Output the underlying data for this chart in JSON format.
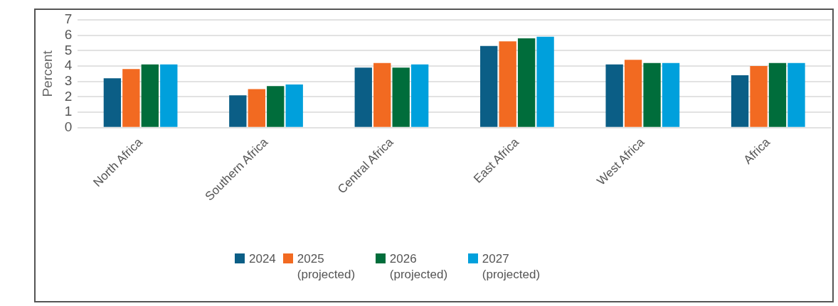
{
  "chart_data": {
    "type": "bar",
    "ylabel": "Percent",
    "categories": [
      "North Africa",
      "Southern Africa",
      "Central Africa",
      "East Africa",
      "West Africa",
      "Africa"
    ],
    "series": [
      {
        "name": "2024",
        "color": "#0b5e86",
        "values": [
          3.2,
          2.1,
          3.9,
          5.3,
          4.1,
          3.4
        ]
      },
      {
        "name": "2025 (projected)",
        "color": "#f26a21",
        "values": [
          3.8,
          2.5,
          4.2,
          5.6,
          4.4,
          4.0
        ]
      },
      {
        "name": "2026 (projected)",
        "color": "#006d3b",
        "values": [
          4.1,
          2.7,
          3.9,
          5.8,
          4.2,
          4.2
        ]
      },
      {
        "name": "2027 (projected)",
        "color": "#00a0dc",
        "values": [
          4.1,
          2.8,
          4.1,
          5.9,
          4.2,
          4.2
        ]
      }
    ],
    "ylim": [
      0,
      7
    ],
    "yticks": [
      0,
      1,
      2,
      3,
      4,
      5,
      6,
      7
    ],
    "grid": "y",
    "legend": "bottom"
  }
}
